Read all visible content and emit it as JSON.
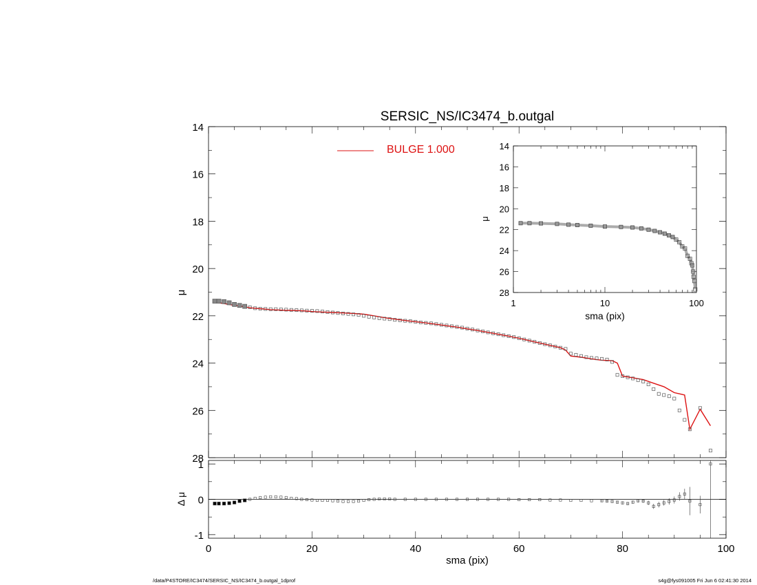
{
  "footer": {
    "path": "/data/P4STORE/IC3474/SERSIC_NS/IC3474_b.outgal_1dprof",
    "stamp": "s4g@fys091005  Fri Jun  6 02:41:30 2014"
  },
  "chart_data": [
    {
      "id": "main-profile",
      "type": "scatter",
      "title": "SERSIC_NS/IC3474_b.outgal",
      "xlabel": "",
      "ylabel": "μ",
      "xlim": [
        0,
        100
      ],
      "ylim": [
        28,
        14
      ],
      "y_inverted": true,
      "yticks": [
        14,
        16,
        18,
        20,
        22,
        24,
        26,
        28
      ],
      "legend": {
        "position": "top-center",
        "entries": [
          {
            "label": "BULGE  1.000",
            "color": "#dd1111"
          }
        ]
      },
      "series": [
        {
          "kind": "data-points",
          "marker": "square",
          "color": "#555555",
          "x": [
            1.2,
            2,
            3,
            4,
            5,
            6,
            7,
            8,
            9,
            10,
            11,
            12,
            13,
            14,
            15,
            16,
            17,
            18,
            19,
            20,
            21,
            22,
            23,
            24,
            25,
            26,
            27,
            28,
            29,
            30,
            31,
            32,
            33,
            34,
            35,
            36,
            37,
            38,
            39,
            40,
            41,
            42,
            43,
            44,
            45,
            46,
            47,
            48,
            49,
            50,
            51,
            52,
            53,
            54,
            55,
            56,
            57,
            58,
            59,
            60,
            61,
            62,
            63,
            64,
            65,
            66,
            67,
            68,
            69,
            70,
            71,
            72,
            73,
            74,
            75,
            76,
            77,
            78,
            79,
            80,
            81,
            82,
            83,
            84,
            85,
            86,
            87,
            88,
            89,
            90,
            91,
            92,
            93,
            95,
            97
          ],
          "y": [
            21.38,
            21.38,
            21.4,
            21.45,
            21.52,
            21.56,
            21.6,
            21.64,
            21.68,
            21.7,
            21.71,
            21.72,
            21.72,
            21.73,
            21.74,
            21.75,
            21.76,
            21.77,
            21.78,
            21.79,
            21.8,
            21.82,
            21.84,
            21.86,
            21.88,
            21.9,
            21.92,
            21.94,
            21.96,
            22.0,
            22.04,
            22.07,
            22.1,
            22.12,
            22.14,
            22.17,
            22.19,
            22.21,
            22.23,
            22.25,
            22.28,
            22.3,
            22.32,
            22.35,
            22.38,
            22.41,
            22.44,
            22.47,
            22.5,
            22.54,
            22.58,
            22.62,
            22.66,
            22.7,
            22.74,
            22.78,
            22.82,
            22.86,
            22.9,
            22.95,
            23.0,
            23.05,
            23.1,
            23.15,
            23.2,
            23.25,
            23.3,
            23.35,
            23.4,
            23.6,
            23.65,
            23.7,
            23.75,
            23.78,
            23.8,
            23.82,
            23.85,
            23.95,
            24.5,
            24.55,
            24.6,
            24.65,
            24.72,
            24.78,
            24.9,
            25.1,
            25.3,
            25.35,
            25.4,
            25.5,
            26.0,
            26.4,
            26.8,
            25.9,
            27.7
          ]
        },
        {
          "kind": "model",
          "name": "BULGE  1.000",
          "type": "line",
          "color": "#dd1111",
          "x": [
            1.2,
            2,
            3,
            4,
            5,
            6,
            7,
            8,
            9,
            10,
            11,
            12,
            13,
            14,
            15,
            16,
            17,
            18,
            19,
            20,
            22,
            24,
            26,
            28,
            30,
            32,
            34,
            36,
            38,
            40,
            42,
            44,
            46,
            48,
            50,
            52,
            54,
            56,
            58,
            60,
            62,
            64,
            66,
            68,
            69,
            70,
            72,
            74,
            76,
            78,
            79,
            80,
            82,
            84,
            86,
            88,
            90,
            91,
            92,
            93,
            95,
            97
          ],
          "y": [
            21.42,
            21.45,
            21.48,
            21.52,
            21.56,
            21.58,
            21.62,
            21.66,
            21.68,
            21.7,
            21.72,
            21.74,
            21.75,
            21.76,
            21.77,
            21.77,
            21.78,
            21.79,
            21.8,
            21.82,
            21.84,
            21.86,
            21.88,
            21.9,
            21.93,
            22.0,
            22.08,
            22.14,
            22.2,
            22.25,
            22.3,
            22.36,
            22.42,
            22.48,
            22.55,
            22.62,
            22.7,
            22.78,
            22.86,
            22.95,
            23.05,
            23.15,
            23.25,
            23.35,
            23.45,
            23.7,
            23.75,
            23.82,
            23.88,
            23.9,
            24.0,
            24.55,
            24.62,
            24.7,
            24.85,
            25.0,
            25.25,
            25.3,
            25.35,
            26.8,
            25.95,
            26.65
          ]
        }
      ]
    },
    {
      "id": "inset-log-profile",
      "type": "scatter",
      "xlabel": "sma (pix)",
      "ylabel": "μ",
      "x_scale": "log",
      "xlim": [
        1,
        100
      ],
      "xticks": [
        1,
        10,
        100
      ],
      "ylim": [
        28,
        14
      ],
      "y_inverted": true,
      "yticks": [
        14,
        16,
        18,
        20,
        22,
        24,
        26,
        28
      ],
      "series": [
        {
          "kind": "data-points",
          "marker": "square",
          "color": "#555555",
          "x": [
            1.2,
            1.5,
            2,
            3,
            4,
            5,
            7,
            10,
            15,
            20,
            25,
            30,
            35,
            40,
            45,
            50,
            55,
            60,
            65,
            70,
            75,
            80,
            85,
            88,
            90,
            92,
            93,
            95,
            97
          ],
          "y": [
            21.38,
            21.38,
            21.4,
            21.45,
            21.52,
            21.56,
            21.62,
            21.7,
            21.74,
            21.79,
            21.88,
            22.0,
            22.12,
            22.25,
            22.38,
            22.54,
            22.7,
            22.95,
            23.2,
            23.6,
            23.8,
            24.5,
            24.78,
            25.2,
            25.4,
            26.0,
            26.5,
            26.9,
            27.7
          ]
        }
      ]
    },
    {
      "id": "residuals",
      "type": "scatter",
      "xlabel": "sma (pix)",
      "ylabel": "Δ μ",
      "xlim": [
        0,
        100
      ],
      "xticks": [
        0,
        20,
        40,
        60,
        80,
        100
      ],
      "ylim": [
        -1.1,
        1.1
      ],
      "yticks": [
        -1,
        0,
        1
      ],
      "zero_line": true,
      "series": [
        {
          "kind": "residual-points",
          "marker": "square",
          "color": "#444444",
          "x": [
            1.2,
            2,
            3,
            4,
            5,
            6,
            7,
            8,
            9,
            10,
            11,
            12,
            13,
            14,
            15,
            16,
            17,
            18,
            19,
            20,
            21,
            22,
            23,
            24,
            25,
            26,
            27,
            28,
            29,
            30,
            31,
            32,
            33,
            34,
            35,
            36,
            38,
            40,
            42,
            44,
            46,
            48,
            50,
            52,
            54,
            56,
            58,
            60,
            62,
            64,
            66,
            68,
            70,
            72,
            74,
            76,
            77,
            78,
            79,
            80,
            81,
            82,
            83,
            84,
            85,
            86,
            87,
            88,
            89,
            90,
            91,
            92,
            93,
            95,
            97
          ],
          "y": [
            -0.12,
            -0.12,
            -0.12,
            -0.11,
            -0.09,
            -0.05,
            -0.03,
            0.0,
            0.03,
            0.05,
            0.06,
            0.07,
            0.07,
            0.06,
            0.05,
            0.03,
            0.02,
            0.0,
            -0.01,
            -0.02,
            -0.03,
            -0.03,
            -0.03,
            -0.04,
            -0.05,
            -0.06,
            -0.06,
            -0.06,
            -0.05,
            -0.03,
            -0.01,
            0.0,
            0.01,
            0.01,
            0.01,
            0.0,
            0.0,
            0.0,
            0.0,
            0.0,
            0.0,
            0.0,
            0.0,
            0.0,
            0.0,
            0.0,
            0.0,
            -0.01,
            -0.01,
            -0.01,
            -0.02,
            -0.02,
            -0.03,
            -0.03,
            -0.04,
            -0.04,
            -0.05,
            -0.06,
            -0.08,
            -0.1,
            -0.12,
            -0.08,
            -0.04,
            -0.05,
            -0.1,
            -0.2,
            -0.15,
            -0.1,
            -0.06,
            -0.02,
            0.08,
            0.15,
            -0.05,
            -0.15,
            1.0
          ],
          "err": [
            0.01,
            0.01,
            0.01,
            0.01,
            0.01,
            0.01,
            0.01,
            0.01,
            0.01,
            0.01,
            0.01,
            0.01,
            0.01,
            0.01,
            0.01,
            0.01,
            0.01,
            0.01,
            0.01,
            0.01,
            0.01,
            0.01,
            0.01,
            0.01,
            0.01,
            0.01,
            0.01,
            0.01,
            0.01,
            0.01,
            0.01,
            0.01,
            0.01,
            0.01,
            0.01,
            0.01,
            0.01,
            0.01,
            0.01,
            0.01,
            0.01,
            0.01,
            0.01,
            0.01,
            0.01,
            0.01,
            0.01,
            0.01,
            0.01,
            0.01,
            0.02,
            0.02,
            0.02,
            0.02,
            0.02,
            0.03,
            0.03,
            0.03,
            0.03,
            0.04,
            0.04,
            0.04,
            0.05,
            0.05,
            0.06,
            0.07,
            0.08,
            0.08,
            0.09,
            0.1,
            0.12,
            0.15,
            0.4,
            0.25,
            2.1
          ]
        }
      ]
    }
  ]
}
